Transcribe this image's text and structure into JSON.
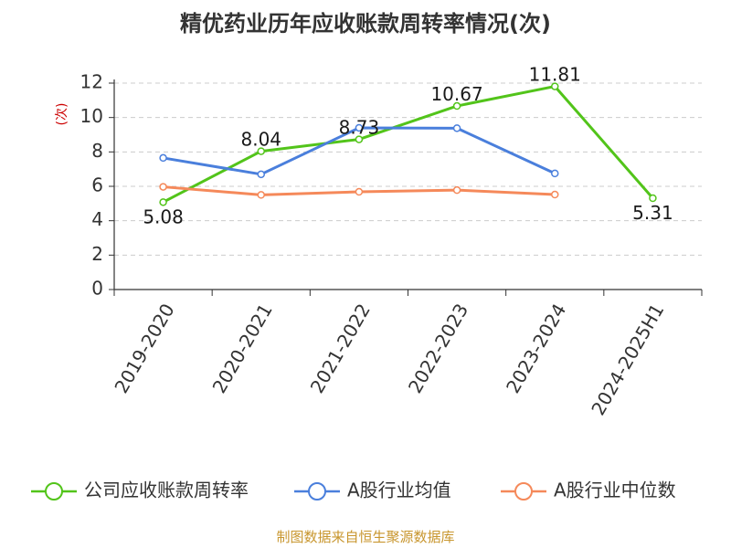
{
  "chart_data": {
    "type": "line",
    "title": "精优药业历年应收账款周转率情况(次)",
    "ylabel": "(次)",
    "ylim": [
      0,
      12
    ],
    "yticks": [
      "0",
      "2",
      "4",
      "6",
      "8",
      "10",
      "12"
    ],
    "categories": [
      "2019-2020",
      "2020-2021",
      "2021-2022",
      "2022-2023",
      "2023-2024",
      "2024-2025H1"
    ],
    "grid": true,
    "legend_position": "bottom",
    "series": [
      {
        "name": "公司应收账款周转率",
        "color": "#52c41a",
        "values": [
          5.08,
          8.04,
          8.73,
          10.67,
          11.81,
          5.31
        ],
        "labels": [
          "5.08",
          "8.04",
          "8.73",
          "10.67",
          "11.81",
          "5.31"
        ]
      },
      {
        "name": "A股行业均值",
        "color": "#4a7fdc",
        "values": [
          7.65,
          6.7,
          9.4,
          9.38,
          6.75,
          null
        ]
      },
      {
        "name": "A股行业中位数",
        "color": "#f5895a",
        "values": [
          5.97,
          5.5,
          5.68,
          5.78,
          5.52,
          null
        ]
      }
    ],
    "source": "制图数据来自恒生聚源数据库",
    "colors": {
      "ylabel": "#cc0000",
      "source": "#c8962e",
      "grid": "#cccccc",
      "axis": "#333333"
    }
  }
}
